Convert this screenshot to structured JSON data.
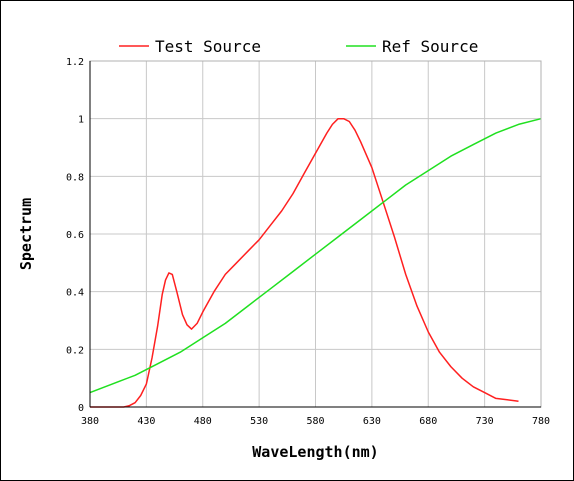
{
  "chart_data": {
    "type": "line",
    "title": "",
    "xlabel": "WaveLength(nm)",
    "ylabel": "Spectrum",
    "xlim": [
      380,
      780
    ],
    "ylim": [
      0,
      1.2
    ],
    "x_ticks": [
      "380",
      "430",
      "480",
      "530",
      "580",
      "630",
      "680",
      "730",
      "780"
    ],
    "y_ticks": [
      "0",
      "0.2",
      "0.4",
      "0.6",
      "0.8",
      "1",
      "1.2"
    ],
    "grid": true,
    "legend_position": "top",
    "series": [
      {
        "name": "Test Source",
        "color": "#ff2020",
        "points": [
          [
            380,
            0.0
          ],
          [
            390,
            0.0
          ],
          [
            400,
            0.0
          ],
          [
            410,
            0.0
          ],
          [
            415,
            0.005
          ],
          [
            420,
            0.015
          ],
          [
            425,
            0.04
          ],
          [
            430,
            0.08
          ],
          [
            435,
            0.17
          ],
          [
            440,
            0.28
          ],
          [
            444,
            0.39
          ],
          [
            447,
            0.44
          ],
          [
            450,
            0.465
          ],
          [
            453,
            0.46
          ],
          [
            457,
            0.4
          ],
          [
            462,
            0.32
          ],
          [
            466,
            0.285
          ],
          [
            470,
            0.27
          ],
          [
            475,
            0.29
          ],
          [
            480,
            0.33
          ],
          [
            490,
            0.4
          ],
          [
            500,
            0.46
          ],
          [
            510,
            0.5
          ],
          [
            520,
            0.54
          ],
          [
            530,
            0.58
          ],
          [
            540,
            0.63
          ],
          [
            550,
            0.68
          ],
          [
            560,
            0.74
          ],
          [
            570,
            0.81
          ],
          [
            580,
            0.88
          ],
          [
            590,
            0.95
          ],
          [
            595,
            0.98
          ],
          [
            600,
            1.0
          ],
          [
            605,
            1.0
          ],
          [
            610,
            0.99
          ],
          [
            615,
            0.96
          ],
          [
            620,
            0.92
          ],
          [
            630,
            0.83
          ],
          [
            640,
            0.71
          ],
          [
            650,
            0.59
          ],
          [
            660,
            0.46
          ],
          [
            670,
            0.35
          ],
          [
            680,
            0.26
          ],
          [
            690,
            0.19
          ],
          [
            700,
            0.14
          ],
          [
            710,
            0.1
          ],
          [
            720,
            0.07
          ],
          [
            730,
            0.05
          ],
          [
            740,
            0.03
          ],
          [
            750,
            0.025
          ],
          [
            760,
            0.02
          ]
        ]
      },
      {
        "name": "Ref Source",
        "color": "#20e020",
        "points": [
          [
            380,
            0.05
          ],
          [
            400,
            0.08
          ],
          [
            420,
            0.11
          ],
          [
            440,
            0.15
          ],
          [
            460,
            0.19
          ],
          [
            480,
            0.24
          ],
          [
            500,
            0.29
          ],
          [
            520,
            0.35
          ],
          [
            540,
            0.41
          ],
          [
            560,
            0.47
          ],
          [
            580,
            0.53
          ],
          [
            600,
            0.59
          ],
          [
            620,
            0.65
          ],
          [
            640,
            0.71
          ],
          [
            660,
            0.77
          ],
          [
            680,
            0.82
          ],
          [
            700,
            0.87
          ],
          [
            720,
            0.91
          ],
          [
            740,
            0.95
          ],
          [
            760,
            0.98
          ],
          [
            780,
            1.0
          ]
        ]
      }
    ]
  }
}
